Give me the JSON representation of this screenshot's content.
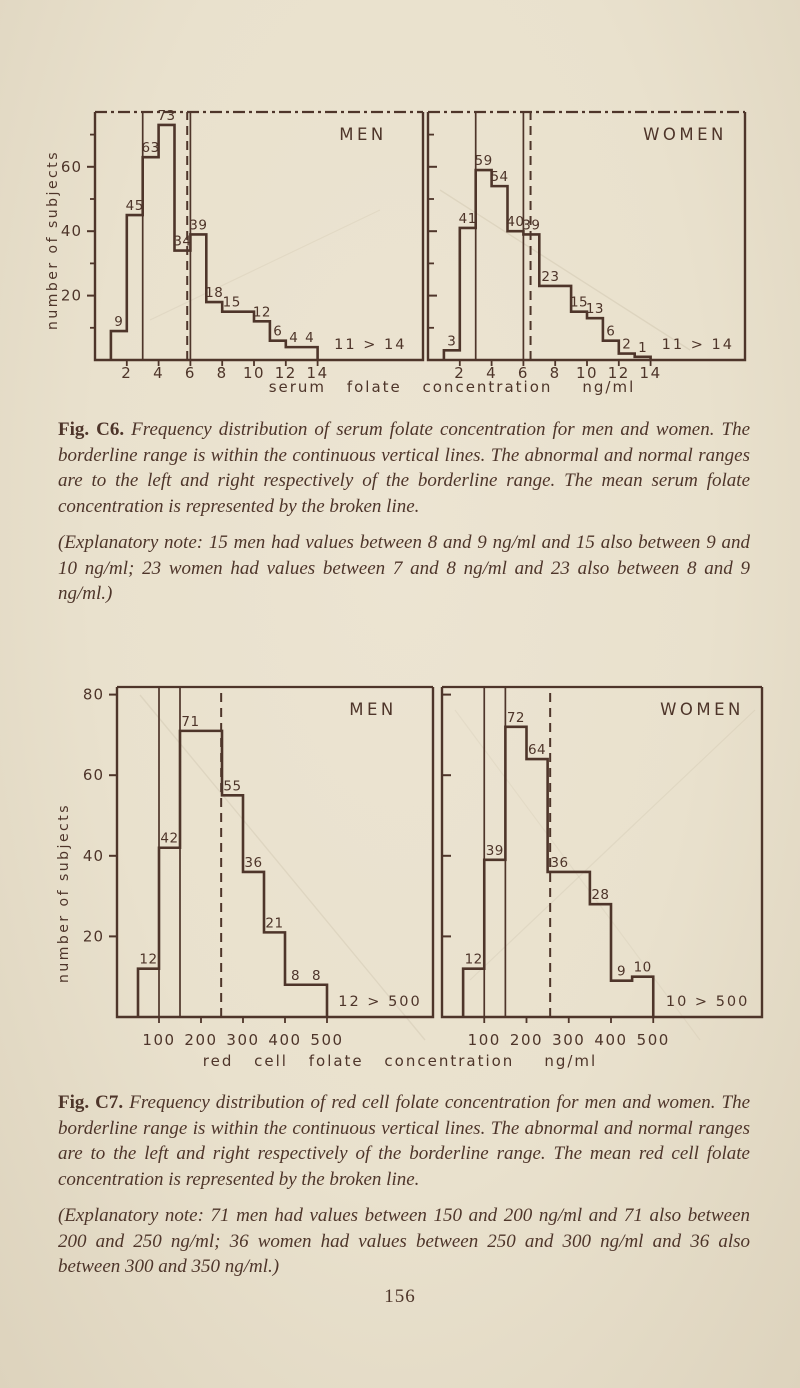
{
  "page": {
    "number": "156",
    "paper_color": "#e9e1cd",
    "ink_color": "#4e352a"
  },
  "figures": {
    "c6": {
      "label": "Fig. C6.",
      "caption": "Frequency distribution of serum folate concentration for men and women. The borderline range is within the continuous vertical lines. The abnormal and normal ranges are to the left and right respectively of the borderline range. The mean serum folate concentration is represented by the broken line.",
      "note": "(Explanatory note: 15 men had values between 8 and 9 ng/ml and 15 also between 9 and 10 ng/ml; 23 women had values between 7 and 8 ng/ml and 23 also between 8 and 9 ng/ml.)"
    },
    "c7": {
      "label": "Fig. C7.",
      "caption": "Frequency distribution of red cell folate concentration for men and women. The borderline range is within the continuous vertical lines. The abnormal and normal ranges are to the left and right respectively of the borderline range. The mean red cell folate concentration is represented by the broken line.",
      "note": "(Explanatory note: 71 men had values between 150 and 200 ng/ml and 71 also between 200 and 250 ng/ml; 36 women had values between 250 and 300 ng/ml and 36 also between 300 and 350 ng/ml.)"
    }
  },
  "chart_data": [
    {
      "id": "fig-c6",
      "type": "histogram",
      "title": "Serum folate concentration frequency distribution",
      "xlabel": "serum folate concentration",
      "x_unit": "ng/ml",
      "ylabel": "number of subjects",
      "x_ticks": [
        2,
        4,
        6,
        8,
        10,
        12,
        14
      ],
      "y_ticks": [
        20,
        40,
        60
      ],
      "y_minor_ticks": [
        10,
        30,
        50,
        70
      ],
      "ylim": [
        0,
        77
      ],
      "grid": false,
      "borderline_range": [
        3,
        6
      ],
      "panels": [
        {
          "label": "MEN",
          "mean_line": 5.8,
          "bins": [
            {
              "from": 1,
              "to": 2,
              "count": 9
            },
            {
              "from": 2,
              "to": 3,
              "count": 45
            },
            {
              "from": 3,
              "to": 4,
              "count": 63
            },
            {
              "from": 4,
              "to": 5,
              "count": 73
            },
            {
              "from": 5,
              "to": 6,
              "count": 34
            },
            {
              "from": 6,
              "to": 7,
              "count": 39
            },
            {
              "from": 7,
              "to": 8,
              "count": 18
            },
            {
              "from": 8,
              "to": 10,
              "count": 15,
              "label_x": 8.6
            },
            {
              "from": 10,
              "to": 11,
              "count": 12
            },
            {
              "from": 11,
              "to": 12,
              "count": 6
            },
            {
              "from": 12,
              "to": 13,
              "count": 4
            },
            {
              "from": 13,
              "to": 14,
              "count": 4
            }
          ],
          "overflow": {
            "label": "11 > 14",
            "count": 11,
            "above": 14
          }
        },
        {
          "label": "WOMEN",
          "mean_line": 6.45,
          "bins": [
            {
              "from": 1,
              "to": 2,
              "count": 3
            },
            {
              "from": 2,
              "to": 3,
              "count": 41
            },
            {
              "from": 3,
              "to": 4,
              "count": 59
            },
            {
              "from": 4,
              "to": 5,
              "count": 54
            },
            {
              "from": 5,
              "to": 6,
              "count": 40
            },
            {
              "from": 6,
              "to": 7,
              "count": 39
            },
            {
              "from": 7,
              "to": 9,
              "count": 23,
              "label_x": 7.7
            },
            {
              "from": 9,
              "to": 10,
              "count": 15
            },
            {
              "from": 10,
              "to": 11,
              "count": 13
            },
            {
              "from": 11,
              "to": 12,
              "count": 6
            },
            {
              "from": 12,
              "to": 13,
              "count": 2
            },
            {
              "from": 13,
              "to": 14,
              "count": 1
            }
          ],
          "overflow": {
            "label": "11 > 14",
            "count": 11,
            "above": 14
          }
        }
      ]
    },
    {
      "id": "fig-c7",
      "type": "histogram",
      "title": "Red cell folate concentration frequency distribution",
      "xlabel": "red cell folate concentration",
      "x_unit": "ng/ml",
      "ylabel": "number of subjects",
      "x_ticks": [
        100,
        200,
        300,
        400,
        500
      ],
      "y_ticks": [
        20,
        40,
        60,
        80
      ],
      "y_minor_ticks": [],
      "ylim": [
        0,
        81
      ],
      "grid": false,
      "borderline_range": [
        100,
        150
      ],
      "panels": [
        {
          "label": "MEN",
          "mean_line": 248,
          "bins": [
            {
              "from": 50,
              "to": 100,
              "count": 12
            },
            {
              "from": 100,
              "to": 150,
              "count": 42
            },
            {
              "from": 150,
              "to": 250,
              "count": 71,
              "label_x": 175
            },
            {
              "from": 250,
              "to": 300,
              "count": 55
            },
            {
              "from": 300,
              "to": 350,
              "count": 36
            },
            {
              "from": 350,
              "to": 400,
              "count": 21
            },
            {
              "from": 400,
              "to": 450,
              "count": 8
            },
            {
              "from": 450,
              "to": 500,
              "count": 8
            }
          ],
          "overflow": {
            "label": "12 > 500",
            "count": 12,
            "above": 500
          }
        },
        {
          "label": "WOMEN",
          "mean_line": 256,
          "bins": [
            {
              "from": 50,
              "to": 100,
              "count": 12
            },
            {
              "from": 100,
              "to": 150,
              "count": 39
            },
            {
              "from": 150,
              "to": 200,
              "count": 72
            },
            {
              "from": 200,
              "to": 250,
              "count": 64
            },
            {
              "from": 250,
              "to": 350,
              "count": 36,
              "label_x": 278
            },
            {
              "from": 350,
              "to": 400,
              "count": 28
            },
            {
              "from": 400,
              "to": 450,
              "count": 9
            },
            {
              "from": 450,
              "to": 500,
              "count": 10
            }
          ],
          "overflow": {
            "label": "10 > 500",
            "count": 10,
            "above": 500
          }
        }
      ]
    }
  ]
}
